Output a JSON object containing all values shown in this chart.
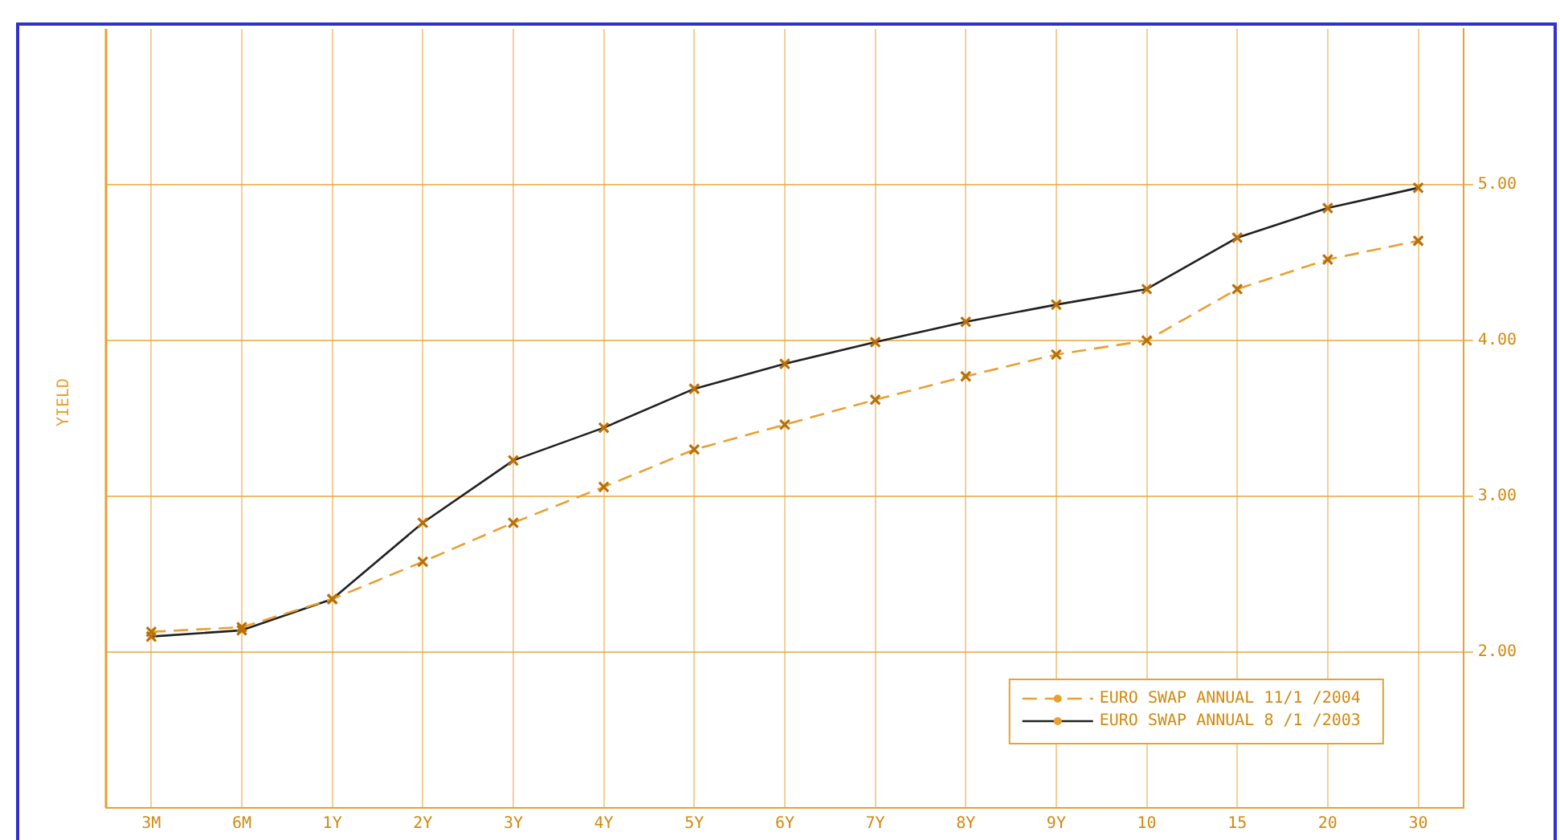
{
  "chart_data": {
    "type": "line",
    "ylabel": "YIELD",
    "categories": [
      "3M",
      "6M",
      "1Y",
      "2Y",
      "3Y",
      "4Y",
      "5Y",
      "6Y",
      "7Y",
      "8Y",
      "9Y",
      "10",
      "15",
      "20",
      "30"
    ],
    "series": [
      {
        "name": "EURO SWAP ANNUAL 11/1 /2004",
        "color": "#e8a030",
        "line_style": "dashed",
        "values": [
          2.13,
          2.16,
          2.34,
          2.58,
          2.83,
          3.06,
          3.3,
          3.46,
          3.62,
          3.77,
          3.91,
          4.0,
          4.33,
          4.52,
          4.64
        ]
      },
      {
        "name": "EURO SWAP ANNUAL 8 /1 /2003",
        "color": "#202020",
        "line_style": "solid",
        "values": [
          2.1,
          2.14,
          2.34,
          2.83,
          3.23,
          3.44,
          3.69,
          3.85,
          3.99,
          4.12,
          4.23,
          4.33,
          4.66,
          4.85,
          4.98
        ]
      }
    ],
    "ylim": [
      1,
      6
    ],
    "yticks": [
      {
        "value": 2,
        "label": "2.00"
      },
      {
        "value": 3,
        "label": "3.00"
      },
      {
        "value": 4,
        "label": "4.00"
      },
      {
        "value": 5,
        "label": "5.00"
      }
    ],
    "grid": true,
    "legend": "bottom right",
    "marker": "cross"
  }
}
